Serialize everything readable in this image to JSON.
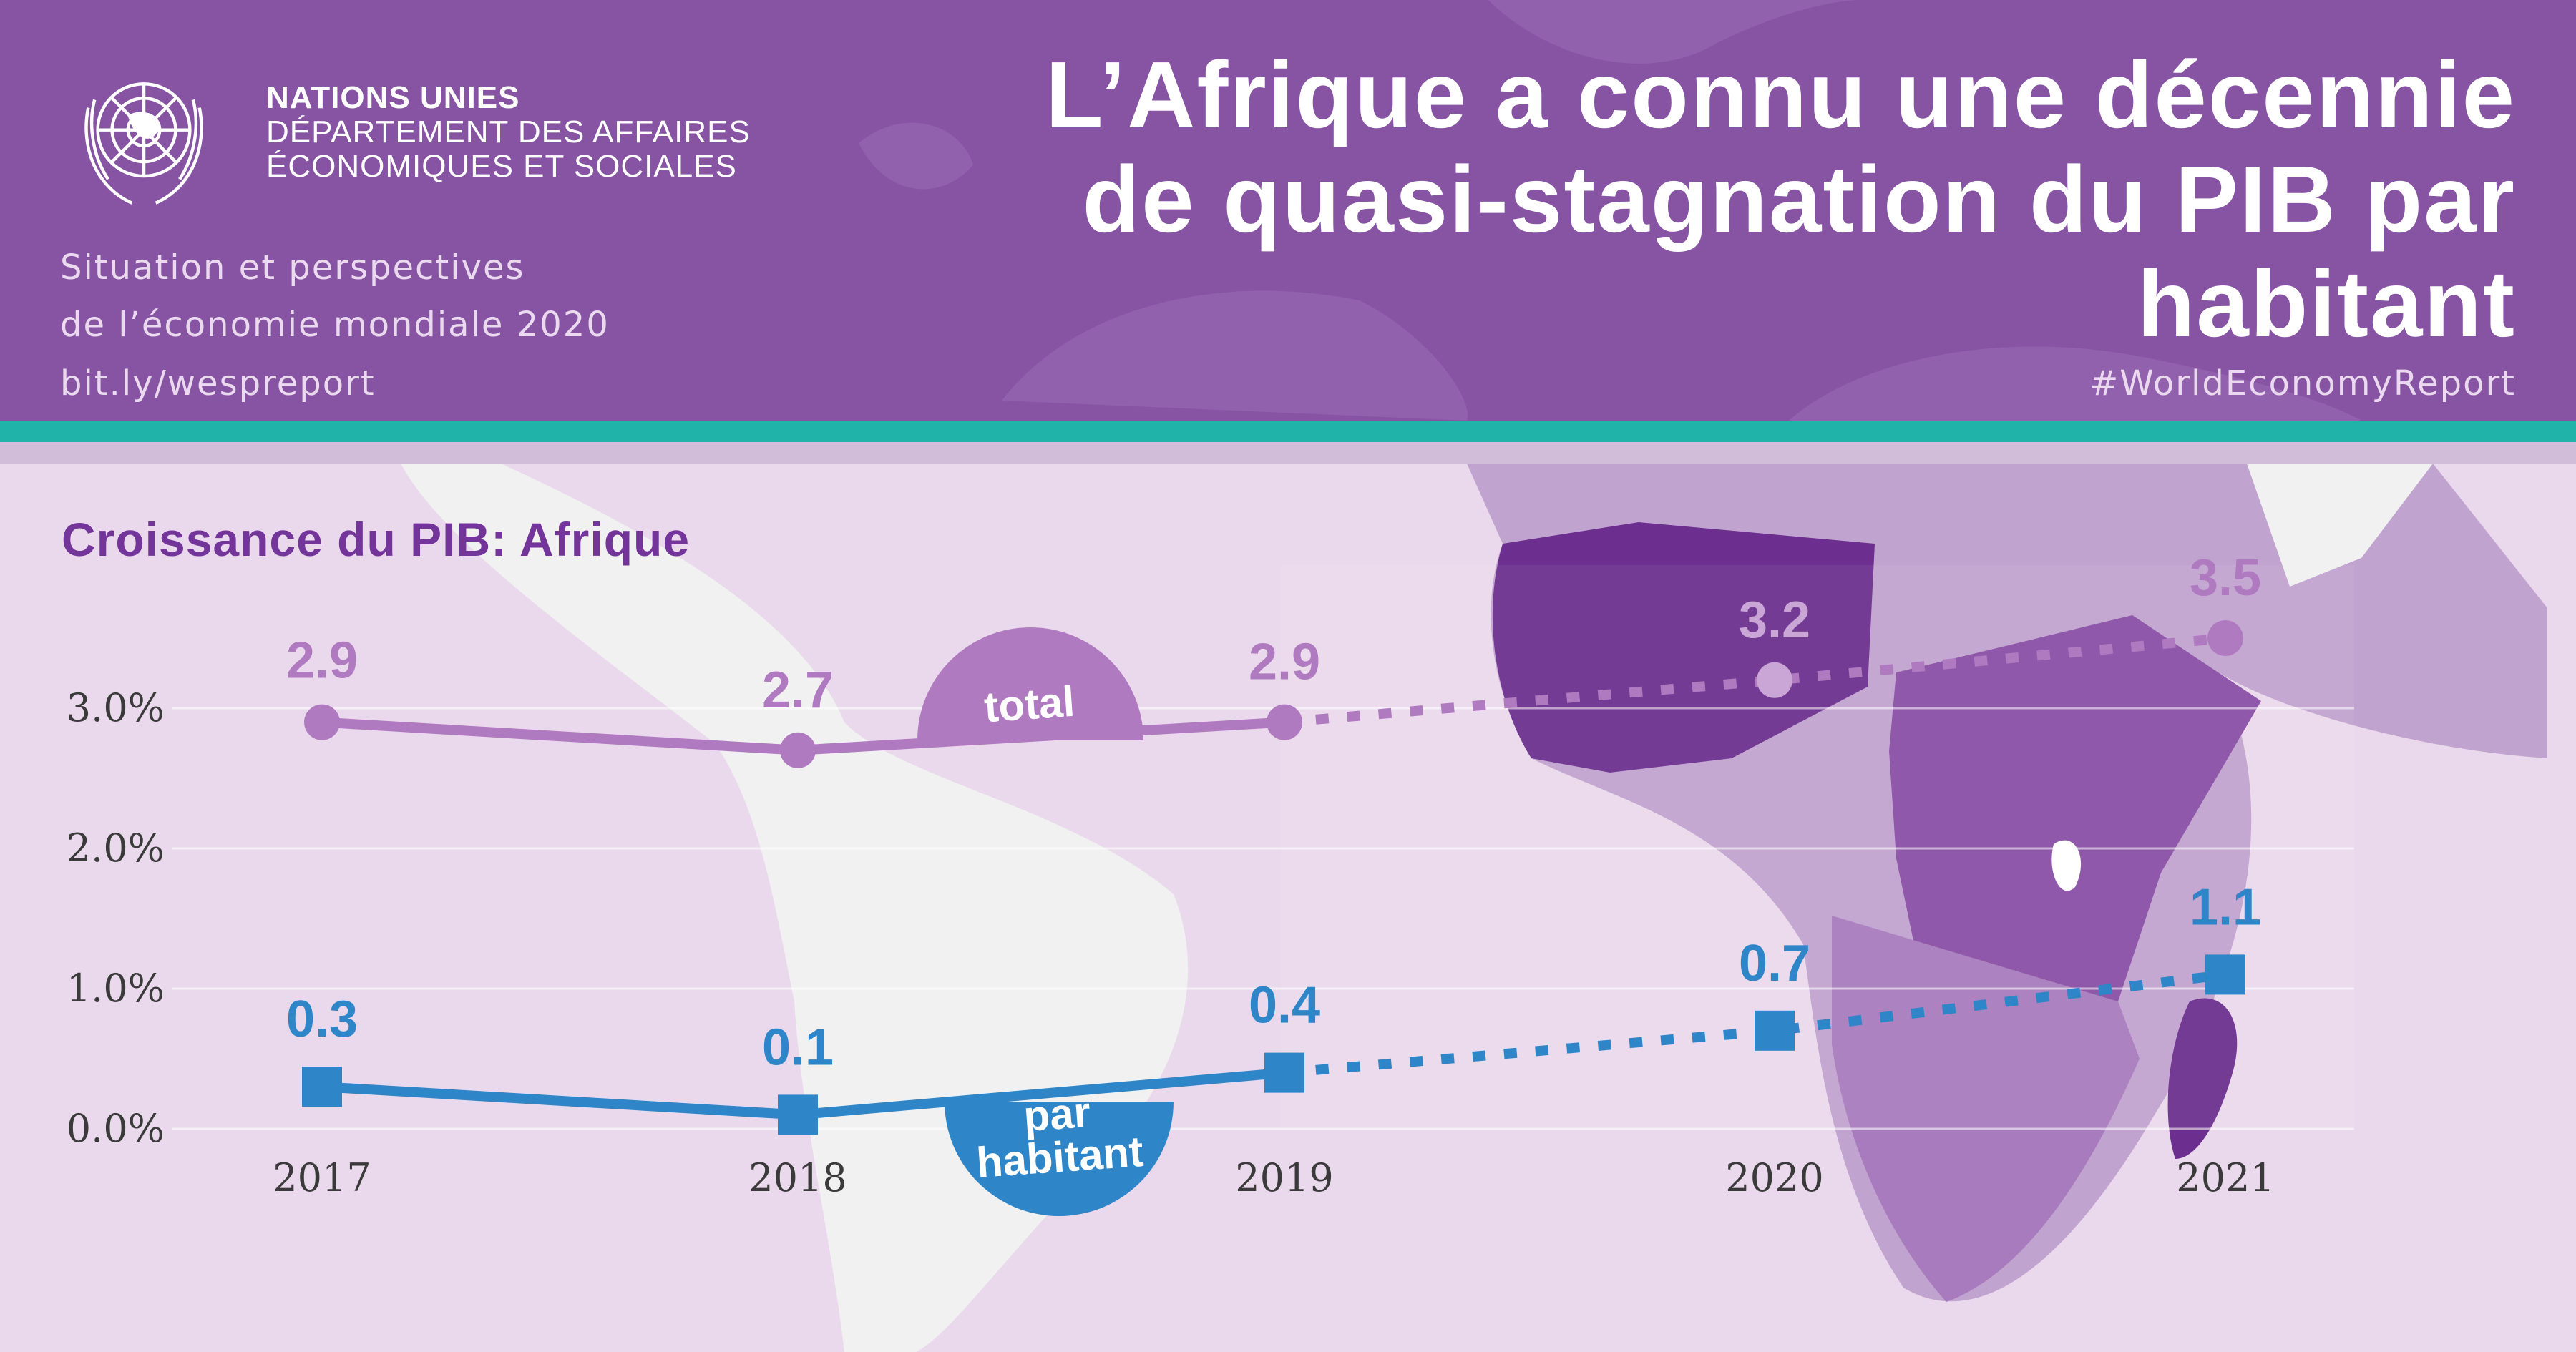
{
  "header": {
    "org_name": "NATIONS UNIES",
    "department_line1": "DÉPARTEMENT DES AFFAIRES",
    "department_line2": "ÉCONOMIQUES ET SOCIALES",
    "report_line1": "Situation et perspectives",
    "report_line2": "de l’économie mondiale 2020",
    "link": "bit.ly/wespreport",
    "title": "L’Afrique a connu une décennie de quasi-stagnation du PIB par habitant",
    "hashtag": "#WorldEconomyReport"
  },
  "colors": {
    "header_bg": "#8654a3",
    "teal_band": "#1fb3aa",
    "total_series": "#b07ac0",
    "per_capita_series": "#2e86c8",
    "chart_title": "#74359b"
  },
  "icons": [
    "un-emblem-icon"
  ],
  "chart_data": {
    "type": "line",
    "title": "Croissance du PIB: Afrique",
    "xlabel": "",
    "ylabel": "",
    "categories": [
      "2017",
      "2018",
      "2019",
      "2020",
      "2021"
    ],
    "yticks": [
      "0.0%",
      "1.0%",
      "2.0%",
      "3.0%"
    ],
    "ylim": [
      0,
      3.5
    ],
    "grid": true,
    "forecast_from": "2019",
    "series": [
      {
        "name": "total",
        "values": [
          2.9,
          2.7,
          2.9,
          3.2,
          3.5
        ],
        "labels": [
          "2.9",
          "2.7",
          "2.9",
          "3.2",
          "3.5"
        ],
        "marker": "circle"
      },
      {
        "name": "par habitant",
        "values": [
          0.3,
          0.1,
          0.4,
          0.7,
          1.1
        ],
        "labels": [
          "0.3",
          "0.1",
          "0.4",
          "0.7",
          "1.1"
        ],
        "marker": "square"
      }
    ]
  }
}
